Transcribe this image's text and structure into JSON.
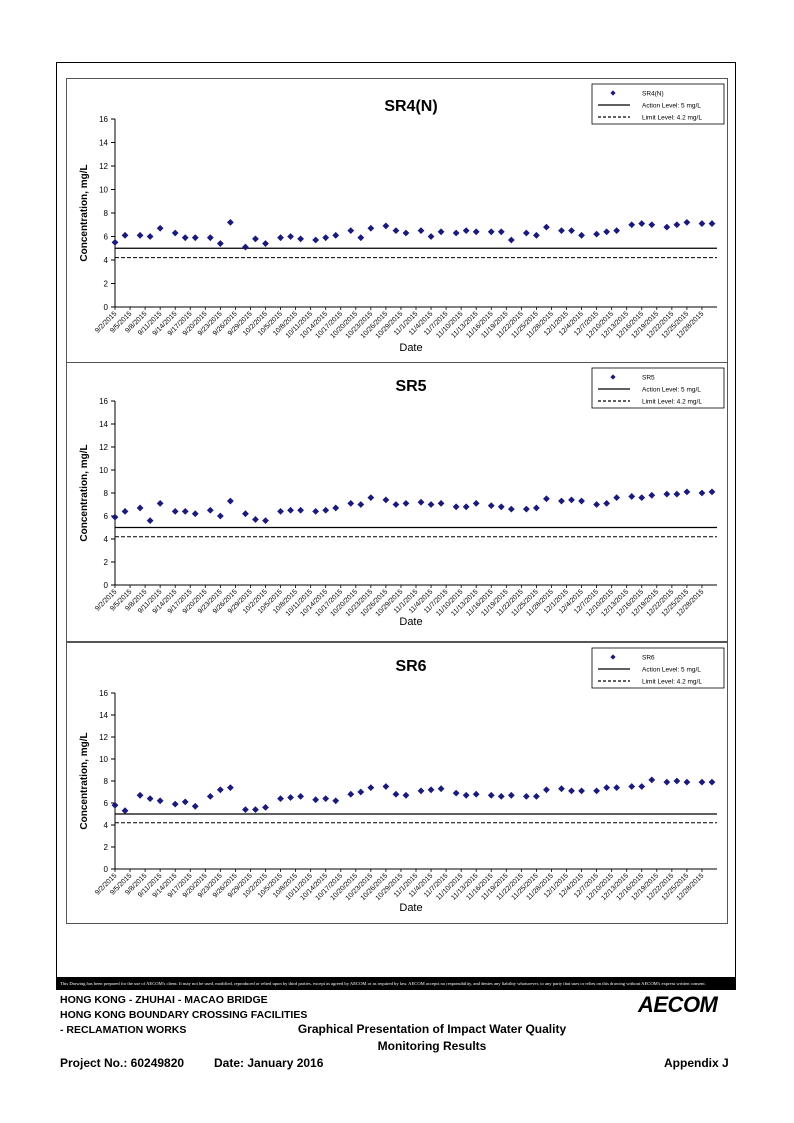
{
  "footer": {
    "disclaimer": "This Drawing has been prepared for the use of AECOM's client. It may not be used, modified, reproduced or relied upon by third parties, except as agreed by AECOM or as required by law. AECOM accepts no responsibility, and denies any liability whatsoever, to any party that uses or relies on this drawing without AECOM's express written consent.",
    "line1": "HONG KONG - ZHUHAI - MACAO BRIDGE",
    "line2": "HONG KONG BOUNDARY CROSSING FACILITIES",
    "line3": "- RECLAMATION WORKS",
    "caption1": "Graphical Presentation of Impact Water Quality",
    "caption2": "Monitoring Results",
    "project_no": "Project No.: 60249820",
    "date": "Date: January 2016",
    "appendix": "Appendix J",
    "logo": "AECOM"
  },
  "colors": {
    "marker": "#1a1a7a",
    "line": "#000000"
  },
  "chart_data": [
    {
      "type": "scatter",
      "title": "SR4(N)",
      "xlabel": "Date",
      "ylabel": "Concentration, mg/L",
      "ylim": [
        0,
        16
      ],
      "yticks": [
        0,
        2,
        4,
        6,
        8,
        10,
        12,
        14,
        16
      ],
      "legend_position": "top-right",
      "grid": false,
      "x_tick_labels": [
        "9/2/2015",
        "9/5/2015",
        "9/8/2015",
        "9/11/2015",
        "9/14/2015",
        "9/17/2015",
        "9/20/2015",
        "9/23/2015",
        "9/26/2015",
        "9/29/2015",
        "10/2/2015",
        "10/5/2015",
        "10/8/2015",
        "10/11/2015",
        "10/14/2015",
        "10/17/2015",
        "10/20/2015",
        "10/23/2015",
        "10/26/2015",
        "10/29/2015",
        "11/1/2015",
        "11/4/2015",
        "11/7/2015",
        "11/10/2015",
        "11/13/2015",
        "11/16/2015",
        "11/19/2015",
        "11/22/2015",
        "11/25/2015",
        "11/28/2015",
        "12/1/2015",
        "12/4/2015",
        "12/7/2015",
        "12/10/2015",
        "12/13/2015",
        "12/16/2015",
        "12/19/2015",
        "12/22/2015",
        "12/25/2015",
        "12/28/2015"
      ],
      "x_range": [
        "9/2/2015",
        "12/31/2015"
      ],
      "series": [
        {
          "name": "SR4(N)",
          "marker": "diamond",
          "x": [
            "9/2/2015",
            "9/4/2015",
            "9/7/2015",
            "9/9/2015",
            "9/11/2015",
            "9/14/2015",
            "9/16/2015",
            "9/18/2015",
            "9/21/2015",
            "9/23/2015",
            "9/25/2015",
            "9/28/2015",
            "9/30/2015",
            "10/2/2015",
            "10/5/2015",
            "10/7/2015",
            "10/9/2015",
            "10/12/2015",
            "10/14/2015",
            "10/16/2015",
            "10/19/2015",
            "10/21/2015",
            "10/23/2015",
            "10/26/2015",
            "10/28/2015",
            "10/30/2015",
            "11/2/2015",
            "11/4/2015",
            "11/6/2015",
            "11/9/2015",
            "11/11/2015",
            "11/13/2015",
            "11/16/2015",
            "11/18/2015",
            "11/20/2015",
            "11/23/2015",
            "11/25/2015",
            "11/27/2015",
            "11/30/2015",
            "12/2/2015",
            "12/4/2015",
            "12/7/2015",
            "12/9/2015",
            "12/11/2015",
            "12/14/2015",
            "12/16/2015",
            "12/18/2015",
            "12/21/2015",
            "12/23/2015",
            "12/25/2015",
            "12/28/2015",
            "12/30/2015"
          ],
          "y": [
            5.5,
            6.1,
            6.1,
            6.0,
            6.7,
            6.3,
            5.9,
            5.9,
            5.9,
            5.4,
            7.2,
            5.1,
            5.8,
            5.4,
            5.9,
            6.0,
            5.8,
            5.7,
            5.9,
            6.1,
            6.5,
            5.9,
            6.7,
            6.9,
            6.5,
            6.3,
            6.5,
            6.0,
            6.4,
            6.3,
            6.5,
            6.4,
            6.4,
            6.4,
            5.7,
            6.3,
            6.1,
            6.8,
            6.5,
            6.5,
            6.1,
            6.2,
            6.4,
            6.5,
            7.0,
            7.1,
            7.0,
            6.8,
            7.0,
            7.2,
            7.1,
            7.1
          ]
        },
        {
          "name": "Action Level: 5 mg/L",
          "type": "line",
          "y": 5,
          "style": "solid"
        },
        {
          "name": "Limit Level: 4.2 mg/L",
          "type": "line",
          "y": 4.2,
          "style": "dashed"
        }
      ]
    },
    {
      "type": "scatter",
      "title": "SR5",
      "xlabel": "Date",
      "ylabel": "Concentration, mg/L",
      "ylim": [
        0,
        16
      ],
      "yticks": [
        0,
        2,
        4,
        6,
        8,
        10,
        12,
        14,
        16
      ],
      "legend_position": "top-right",
      "grid": false,
      "x_tick_labels": [
        "9/2/2015",
        "9/5/2015",
        "9/8/2015",
        "9/11/2015",
        "9/14/2015",
        "9/17/2015",
        "9/20/2015",
        "9/23/2015",
        "9/26/2015",
        "9/29/2015",
        "10/2/2015",
        "10/5/2015",
        "10/8/2015",
        "10/11/2015",
        "10/14/2015",
        "10/17/2015",
        "10/20/2015",
        "10/23/2015",
        "10/26/2015",
        "10/29/2015",
        "11/1/2015",
        "11/4/2015",
        "11/7/2015",
        "11/10/2015",
        "11/13/2015",
        "11/16/2015",
        "11/19/2015",
        "11/22/2015",
        "11/25/2015",
        "11/28/2015",
        "12/1/2015",
        "12/4/2015",
        "12/7/2015",
        "12/10/2015",
        "12/13/2015",
        "12/16/2015",
        "12/19/2015",
        "12/22/2015",
        "12/25/2015",
        "12/28/2015"
      ],
      "x_range": [
        "9/2/2015",
        "12/31/2015"
      ],
      "series": [
        {
          "name": "SR5",
          "marker": "diamond",
          "x": [
            "9/2/2015",
            "9/4/2015",
            "9/7/2015",
            "9/9/2015",
            "9/11/2015",
            "9/14/2015",
            "9/16/2015",
            "9/18/2015",
            "9/21/2015",
            "9/23/2015",
            "9/25/2015",
            "9/28/2015",
            "9/30/2015",
            "10/2/2015",
            "10/5/2015",
            "10/7/2015",
            "10/9/2015",
            "10/12/2015",
            "10/14/2015",
            "10/16/2015",
            "10/19/2015",
            "10/21/2015",
            "10/23/2015",
            "10/26/2015",
            "10/28/2015",
            "10/30/2015",
            "11/2/2015",
            "11/4/2015",
            "11/6/2015",
            "11/9/2015",
            "11/11/2015",
            "11/13/2015",
            "11/16/2015",
            "11/18/2015",
            "11/20/2015",
            "11/23/2015",
            "11/25/2015",
            "11/27/2015",
            "11/30/2015",
            "12/2/2015",
            "12/4/2015",
            "12/7/2015",
            "12/9/2015",
            "12/11/2015",
            "12/14/2015",
            "12/16/2015",
            "12/18/2015",
            "12/21/2015",
            "12/23/2015",
            "12/25/2015",
            "12/28/2015",
            "12/30/2015"
          ],
          "y": [
            5.9,
            6.4,
            6.7,
            5.6,
            7.1,
            6.4,
            6.4,
            6.2,
            6.5,
            6.0,
            7.3,
            6.2,
            5.7,
            5.6,
            6.4,
            6.5,
            6.5,
            6.4,
            6.5,
            6.7,
            7.1,
            7.0,
            7.6,
            7.4,
            7.0,
            7.1,
            7.2,
            7.0,
            7.1,
            6.8,
            6.8,
            7.1,
            6.9,
            6.8,
            6.6,
            6.6,
            6.7,
            7.5,
            7.3,
            7.4,
            7.3,
            7.0,
            7.1,
            7.6,
            7.7,
            7.6,
            7.8,
            7.9,
            7.9,
            8.1,
            8.0,
            8.1
          ]
        },
        {
          "name": "Action Level: 5 mg/L",
          "type": "line",
          "y": 5,
          "style": "solid"
        },
        {
          "name": "Limit Level: 4.2 mg/L",
          "type": "line",
          "y": 4.2,
          "style": "dashed"
        }
      ]
    },
    {
      "type": "scatter",
      "title": "SR6",
      "xlabel": "Date",
      "ylabel": "Concentration, mg/L",
      "ylim": [
        0,
        16
      ],
      "yticks": [
        0,
        2,
        4,
        6,
        8,
        10,
        12,
        14,
        16
      ],
      "legend_position": "top-right",
      "grid": false,
      "x_tick_labels": [
        "9/2/2015",
        "9/5/2015",
        "9/8/2015",
        "9/11/2015",
        "9/14/2015",
        "9/17/2015",
        "9/20/2015",
        "9/23/2015",
        "9/26/2015",
        "9/29/2015",
        "10/2/2015",
        "10/5/2015",
        "10/8/2015",
        "10/11/2015",
        "10/14/2015",
        "10/17/2015",
        "10/20/2015",
        "10/23/2015",
        "10/26/2015",
        "10/29/2015",
        "11/1/2015",
        "11/4/2015",
        "11/7/2015",
        "11/10/2015",
        "11/13/2015",
        "11/16/2015",
        "11/19/2015",
        "11/22/2015",
        "11/25/2015",
        "11/28/2015",
        "12/1/2015",
        "12/4/2015",
        "12/7/2015",
        "12/10/2015",
        "12/13/2015",
        "12/16/2015",
        "12/19/2015",
        "12/22/2015",
        "12/25/2015",
        "12/28/2015"
      ],
      "x_range": [
        "9/2/2015",
        "12/31/2015"
      ],
      "series": [
        {
          "name": "SR6",
          "marker": "diamond",
          "x": [
            "9/2/2015",
            "9/4/2015",
            "9/7/2015",
            "9/9/2015",
            "9/11/2015",
            "9/14/2015",
            "9/16/2015",
            "9/18/2015",
            "9/21/2015",
            "9/23/2015",
            "9/25/2015",
            "9/28/2015",
            "9/30/2015",
            "10/2/2015",
            "10/5/2015",
            "10/7/2015",
            "10/9/2015",
            "10/12/2015",
            "10/14/2015",
            "10/16/2015",
            "10/19/2015",
            "10/21/2015",
            "10/23/2015",
            "10/26/2015",
            "10/28/2015",
            "10/30/2015",
            "11/2/2015",
            "11/4/2015",
            "11/6/2015",
            "11/9/2015",
            "11/11/2015",
            "11/13/2015",
            "11/16/2015",
            "11/18/2015",
            "11/20/2015",
            "11/23/2015",
            "11/25/2015",
            "11/27/2015",
            "11/30/2015",
            "12/2/2015",
            "12/4/2015",
            "12/7/2015",
            "12/9/2015",
            "12/11/2015",
            "12/14/2015",
            "12/16/2015",
            "12/18/2015",
            "12/21/2015",
            "12/23/2015",
            "12/25/2015",
            "12/28/2015",
            "12/30/2015"
          ],
          "y": [
            5.8,
            5.3,
            6.7,
            6.4,
            6.2,
            5.9,
            6.1,
            5.7,
            6.6,
            7.2,
            7.4,
            5.4,
            5.4,
            5.6,
            6.4,
            6.5,
            6.6,
            6.3,
            6.4,
            6.2,
            6.8,
            7.0,
            7.4,
            7.5,
            6.8,
            6.7,
            7.1,
            7.2,
            7.3,
            6.9,
            6.7,
            6.8,
            6.7,
            6.6,
            6.7,
            6.6,
            6.6,
            7.2,
            7.3,
            7.1,
            7.1,
            7.1,
            7.4,
            7.4,
            7.5,
            7.5,
            8.1,
            7.9,
            8.0,
            7.9,
            7.9,
            7.9
          ]
        },
        {
          "name": "Action Level: 5 mg/L",
          "type": "line",
          "y": 5,
          "style": "solid"
        },
        {
          "name": "Limit Level: 4.2 mg/L",
          "type": "line",
          "y": 4.2,
          "style": "dashed"
        }
      ]
    }
  ]
}
